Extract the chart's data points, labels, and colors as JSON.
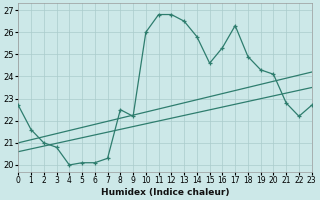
{
  "title": "",
  "xlabel": "Humidex (Indice chaleur)",
  "xlim": [
    0,
    23
  ],
  "ylim": [
    19.7,
    27.3
  ],
  "xticks": [
    0,
    1,
    2,
    3,
    4,
    5,
    6,
    7,
    8,
    9,
    10,
    11,
    12,
    13,
    14,
    15,
    16,
    17,
    18,
    19,
    20,
    21,
    22,
    23
  ],
  "yticks": [
    20,
    21,
    22,
    23,
    24,
    25,
    26,
    27
  ],
  "bg_color": "#cce8e8",
  "line_color": "#2e7d6e",
  "grid_color": "#aacccc",
  "line1_x": [
    0,
    1,
    2,
    3,
    4,
    5,
    6,
    7,
    8,
    9,
    10,
    11,
    12,
    13,
    14,
    15,
    16,
    17,
    18,
    19,
    20,
    21,
    22,
    23
  ],
  "line1_y": [
    22.7,
    21.6,
    21.0,
    20.8,
    20.0,
    20.1,
    20.1,
    20.3,
    22.5,
    22.2,
    26.0,
    26.8,
    26.8,
    26.5,
    25.8,
    24.6,
    25.3,
    26.3,
    24.9,
    24.3,
    24.1,
    22.8,
    22.2,
    22.7
  ],
  "line2_x": [
    0,
    23
  ],
  "line2_y": [
    21.0,
    24.2
  ],
  "line3_x": [
    0,
    23
  ],
  "line3_y": [
    20.6,
    23.5
  ]
}
